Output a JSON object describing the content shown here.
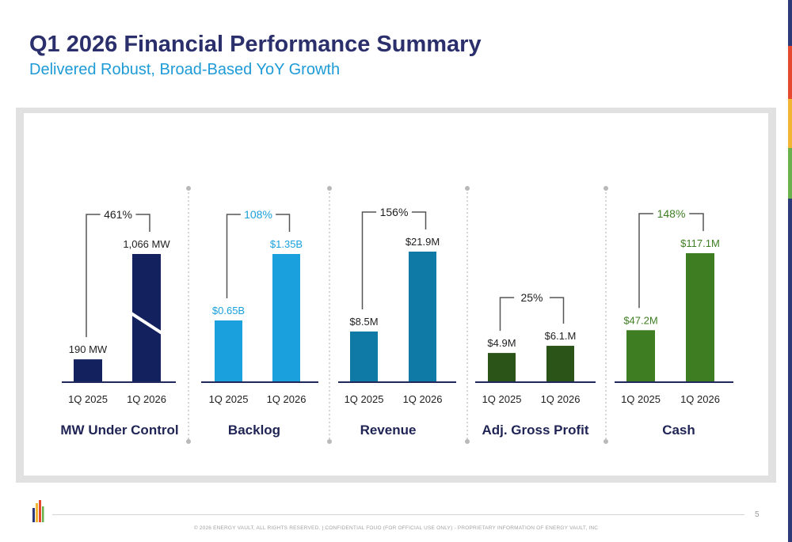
{
  "header": {
    "title": "Q1 2026 Financial Performance Summary",
    "subtitle": "Delivered Robust, Broad-Based YoY Growth"
  },
  "colors": {
    "title": "#2b2f6b",
    "subtitle": "#1e9bd7",
    "accent_stripe": [
      "#2d3a7a",
      "#e64a2e",
      "#f2b632",
      "#6ab04c",
      "#2d3a7a"
    ]
  },
  "chart_data": [
    {
      "type": "bar",
      "label": "MW Under Control",
      "categories": [
        "1Q 2025",
        "1Q 2026"
      ],
      "values": [
        190,
        1066
      ],
      "value_labels": [
        "190 MW",
        "1,066 MW"
      ],
      "growth_label": "461%",
      "axis_break_on": 1,
      "ylim": [
        0,
        1066
      ],
      "colors": [
        "#13215f",
        "#13215f"
      ],
      "label_color": "#222222"
    },
    {
      "type": "bar",
      "label": "Backlog",
      "categories": [
        "1Q 2025",
        "1Q 2026"
      ],
      "values": [
        0.65,
        1.35
      ],
      "value_labels": [
        "$0.65B",
        "$1.35B"
      ],
      "growth_label": "108%",
      "ylim": [
        0,
        1.35
      ],
      "colors": [
        "#1aa0dc",
        "#1aa0dc"
      ],
      "label_color": "#1aa0dc"
    },
    {
      "type": "bar",
      "label": "Revenue",
      "categories": [
        "1Q 2025",
        "1Q 2026"
      ],
      "values": [
        8.5,
        21.9
      ],
      "value_labels": [
        "$8.5M",
        "$21.9M"
      ],
      "growth_label": "156%",
      "ylim": [
        0,
        21.9
      ],
      "colors": [
        "#107aa6",
        "#107aa6"
      ],
      "label_color": "#222222"
    },
    {
      "type": "bar",
      "label": "Adj. Gross Profit",
      "categories": [
        "1Q 2025",
        "1Q 2026"
      ],
      "values": [
        4.9,
        6.1
      ],
      "value_labels": [
        "$4.9M",
        "$6.1.M"
      ],
      "growth_label": "25%",
      "ylim": [
        0,
        21.9
      ],
      "colors": [
        "#2a5418",
        "#2a5418"
      ],
      "label_color": "#222222"
    },
    {
      "type": "bar",
      "label": "Cash",
      "categories": [
        "1Q 2025",
        "1Q 2026"
      ],
      "values": [
        47.2,
        117.1
      ],
      "value_labels": [
        "$47.2M",
        "$117.1M"
      ],
      "growth_label": "148%",
      "ylim": [
        0,
        117.1
      ],
      "colors": [
        "#3e7d22",
        "#3e7d22"
      ],
      "label_color": "#3e7d22"
    }
  ],
  "footer": {
    "page_number": "5",
    "text": "© 2026 ENERGY VAULT, ALL RIGHTS RESERVED. | CONFIDENTIAL FOUO (FOR OFFICIAL USE ONLY) - PROPRIETARY INFORMATION OF ENERGY VAULT, INC"
  }
}
